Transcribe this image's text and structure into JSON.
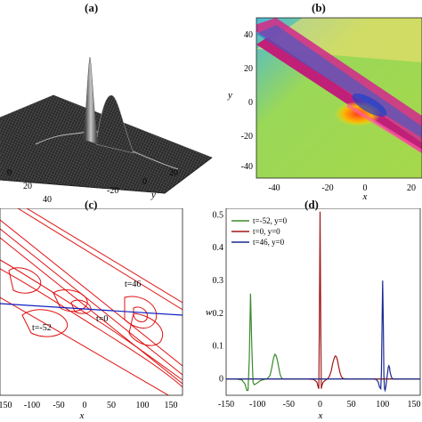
{
  "panels": {
    "a": {
      "label": "(a)",
      "axis_ticks_x": [
        "0",
        "20",
        "40"
      ],
      "axis_ticks_y": [
        "-20",
        "0",
        "20"
      ],
      "axis_label_y": "y"
    },
    "b": {
      "label": "(b)",
      "xlabel": "x",
      "ylabel": "y",
      "xticks": [
        "-40",
        "-20",
        "0",
        "20"
      ],
      "yticks": [
        "40",
        "20",
        "0",
        "-20",
        "-40"
      ]
    },
    "c": {
      "label": "(c)",
      "xlabel": "x",
      "xticks": [
        "150",
        "-100",
        "-50",
        "0",
        "50",
        "100",
        "150"
      ],
      "annotations": [
        "t=46",
        "t=0",
        "t=-52"
      ]
    },
    "d": {
      "label": "(d)",
      "xlabel": "x",
      "ylabel": "w",
      "xticks": [
        "-150",
        "-100",
        "-50",
        "0",
        "50",
        "100",
        "150"
      ],
      "yticks": [
        "0.5",
        "0.4",
        "0.3",
        "0.2",
        "0.1",
        "0"
      ]
    }
  },
  "chart_data": [
    {
      "type": "line",
      "panel": "d",
      "xlabel": "x",
      "ylabel": "w",
      "xlim": [
        -150,
        160
      ],
      "ylim": [
        -0.05,
        0.52
      ],
      "series": [
        {
          "name": "t=-52, y=0",
          "color": "#3a8a2a",
          "x": [
            -150,
            -135,
            -125,
            -120,
            -117,
            -115,
            -113,
            -111,
            -109,
            -107,
            -105,
            -100,
            -95,
            -90,
            -85,
            -80,
            -78,
            -76,
            -74,
            -72,
            -70,
            -68,
            -66,
            -64,
            -62,
            -60,
            -55,
            -50,
            -40,
            0,
            100,
            160
          ],
          "y": [
            0,
            0,
            -0.003,
            -0.015,
            -0.035,
            -0.035,
            0.06,
            0.26,
            0.1,
            -0.01,
            -0.018,
            -0.012,
            -0.005,
            -0.002,
            0.0,
            0.01,
            0.025,
            0.045,
            0.065,
            0.075,
            0.07,
            0.055,
            0.035,
            0.015,
            0.005,
            0.0,
            0.0,
            0.0,
            0.0,
            0.0,
            0.0,
            0.0
          ]
        },
        {
          "name": "t=0, y=0",
          "color": "#a01818",
          "x": [
            -150,
            -40,
            -20,
            -10,
            -5,
            -3,
            -2,
            -1,
            0,
            1,
            2,
            3,
            5,
            8,
            12,
            15,
            18,
            20,
            22,
            24,
            26,
            28,
            30,
            32,
            34,
            36,
            40,
            50,
            160
          ],
          "y": [
            0,
            0,
            0,
            -0.002,
            -0.01,
            -0.025,
            -0.03,
            0.2,
            0.51,
            0.2,
            -0.03,
            -0.02,
            -0.01,
            -0.005,
            0.0,
            0.008,
            0.025,
            0.045,
            0.06,
            0.07,
            0.068,
            0.055,
            0.035,
            0.018,
            0.007,
            0.002,
            0.0,
            0.0,
            0.0
          ]
        },
        {
          "name": "t=46, y=0",
          "color": "#1a2a90",
          "x": [
            -150,
            60,
            85,
            90,
            93,
            95,
            97,
            98,
            100,
            101,
            102,
            103,
            104,
            105,
            106,
            107,
            108,
            109,
            110,
            111,
            112,
            114,
            116,
            120,
            130,
            160
          ],
          "y": [
            0,
            0,
            0,
            -0.002,
            -0.01,
            -0.025,
            -0.03,
            0.02,
            0.3,
            0.18,
            0.01,
            -0.03,
            -0.035,
            -0.025,
            -0.01,
            0.005,
            0.02,
            0.035,
            0.04,
            0.035,
            0.02,
            0.005,
            0.0,
            0.0,
            0.0,
            0.0
          ]
        }
      ]
    }
  ]
}
